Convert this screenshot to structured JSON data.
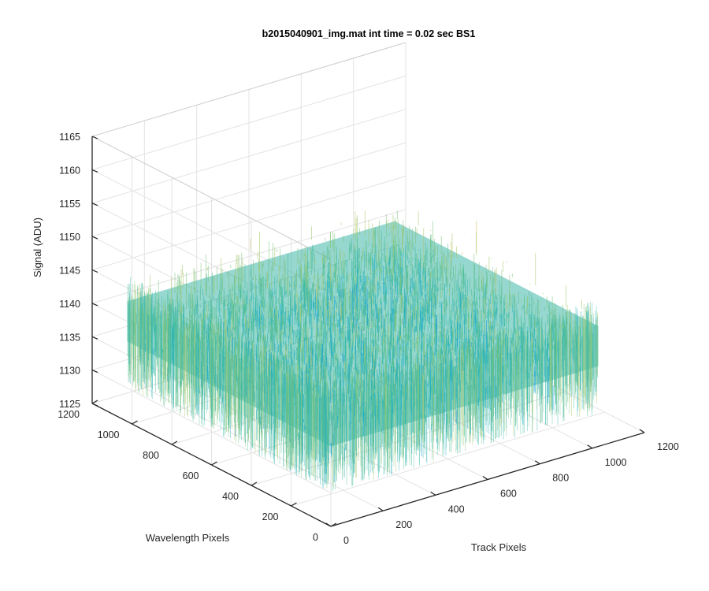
{
  "chart_data": {
    "type": "surface",
    "title": "b2015040901_img.mat int time = 0.02 sec   BS1",
    "xlabel": "Track Pixels",
    "ylabel": "Wavelength Pixels",
    "zlabel": "Signal (ADU)",
    "xlim": [
      0,
      1200
    ],
    "ylim": [
      0,
      1200
    ],
    "zlim": [
      1125,
      1165
    ],
    "x_ticks": [
      "0",
      "200",
      "400",
      "600",
      "800",
      "1000",
      "1200"
    ],
    "y_ticks": [
      "0",
      "200",
      "400",
      "600",
      "800",
      "1000",
      "1200"
    ],
    "z_ticks": [
      "1125",
      "1130",
      "1135",
      "1140",
      "1145",
      "1150",
      "1155",
      "1160",
      "1165"
    ],
    "grid": true,
    "surface": {
      "x_range": [
        0,
        1024
      ],
      "y_range": [
        0,
        1024
      ],
      "mean": 1140,
      "typical_range": [
        1130,
        1152
      ],
      "colormap": "parula"
    }
  }
}
